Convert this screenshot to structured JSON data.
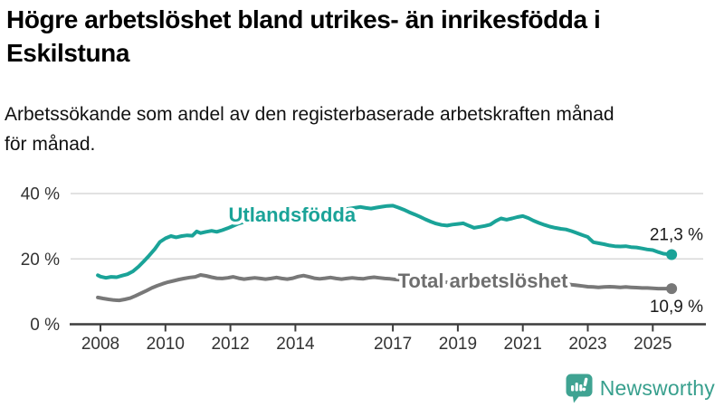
{
  "chart_data": {
    "type": "line",
    "title": "Högre arbetslöshet bland utrikes- än inrikesfödda i Eskilstuna",
    "subtitle": "Arbetssökande som andel av den registerbaserade arbetskraften månad för månad.",
    "xlabel": "",
    "ylabel": "",
    "ylim": [
      0,
      40
    ],
    "grid": "horizontal",
    "legend_position": "inline-labels",
    "x_ticks": [
      2008,
      2010,
      2012,
      2014,
      2017,
      2019,
      2021,
      2023,
      2025
    ],
    "y_ticks": [
      {
        "value": 0,
        "label": "0 %"
      },
      {
        "value": 20,
        "label": "20 %"
      },
      {
        "value": 40,
        "label": "40 %"
      }
    ],
    "series": [
      {
        "name": "Utlandsfödda",
        "color": "#1aa398",
        "end_label": "21,3 %",
        "end_value": 21.3,
        "label_anchor": {
          "year": 2013.9,
          "value": 33.4
        },
        "points": [
          [
            2007.92,
            15.0
          ],
          [
            2008.0,
            14.6
          ],
          [
            2008.17,
            14.2
          ],
          [
            2008.33,
            14.5
          ],
          [
            2008.5,
            14.4
          ],
          [
            2008.67,
            14.9
          ],
          [
            2008.83,
            15.3
          ],
          [
            2009.0,
            16.2
          ],
          [
            2009.17,
            17.6
          ],
          [
            2009.33,
            19.2
          ],
          [
            2009.5,
            21.0
          ],
          [
            2009.67,
            23.0
          ],
          [
            2009.83,
            25.2
          ],
          [
            2010.0,
            26.3
          ],
          [
            2010.17,
            27.0
          ],
          [
            2010.33,
            26.6
          ],
          [
            2010.5,
            27.0
          ],
          [
            2010.67,
            27.2
          ],
          [
            2010.83,
            27.1
          ],
          [
            2010.96,
            28.4
          ],
          [
            2011.08,
            27.9
          ],
          [
            2011.25,
            28.3
          ],
          [
            2011.42,
            28.6
          ],
          [
            2011.58,
            28.3
          ],
          [
            2011.75,
            28.8
          ],
          [
            2011.92,
            29.4
          ],
          [
            2012.08,
            30.1
          ],
          [
            2012.25,
            30.8
          ],
          [
            2012.42,
            31.3
          ],
          [
            2012.58,
            31.1
          ],
          [
            2012.75,
            31.4
          ],
          [
            2013.0,
            31.9
          ],
          [
            2013.33,
            32.4
          ],
          [
            2013.67,
            32.9
          ],
          [
            2014.0,
            33.4
          ],
          [
            2014.33,
            33.8
          ],
          [
            2014.67,
            34.2
          ],
          [
            2015.0,
            34.6
          ],
          [
            2015.33,
            35.0
          ],
          [
            2015.67,
            35.4
          ],
          [
            2016.0,
            35.9
          ],
          [
            2016.17,
            35.6
          ],
          [
            2016.33,
            35.4
          ],
          [
            2016.5,
            35.7
          ],
          [
            2016.67,
            36.0
          ],
          [
            2016.83,
            36.2
          ],
          [
            2017.0,
            36.3
          ],
          [
            2017.17,
            35.7
          ],
          [
            2017.33,
            35.1
          ],
          [
            2017.5,
            34.3
          ],
          [
            2017.67,
            33.6
          ],
          [
            2017.83,
            32.9
          ],
          [
            2018.0,
            32.1
          ],
          [
            2018.17,
            31.4
          ],
          [
            2018.33,
            30.8
          ],
          [
            2018.5,
            30.4
          ],
          [
            2018.67,
            30.2
          ],
          [
            2018.83,
            30.5
          ],
          [
            2019.0,
            30.7
          ],
          [
            2019.17,
            30.9
          ],
          [
            2019.33,
            30.2
          ],
          [
            2019.5,
            29.5
          ],
          [
            2019.67,
            29.8
          ],
          [
            2019.83,
            30.1
          ],
          [
            2020.0,
            30.5
          ],
          [
            2020.17,
            31.6
          ],
          [
            2020.33,
            32.4
          ],
          [
            2020.5,
            32.0
          ],
          [
            2020.67,
            32.4
          ],
          [
            2020.83,
            32.8
          ],
          [
            2021.0,
            33.1
          ],
          [
            2021.17,
            32.5
          ],
          [
            2021.33,
            31.7
          ],
          [
            2021.5,
            31.0
          ],
          [
            2021.67,
            30.4
          ],
          [
            2021.83,
            29.9
          ],
          [
            2022.0,
            29.5
          ],
          [
            2022.17,
            29.2
          ],
          [
            2022.33,
            29.0
          ],
          [
            2022.5,
            28.5
          ],
          [
            2022.67,
            27.9
          ],
          [
            2022.83,
            27.3
          ],
          [
            2023.0,
            26.7
          ],
          [
            2023.08,
            25.9
          ],
          [
            2023.17,
            25.1
          ],
          [
            2023.33,
            24.8
          ],
          [
            2023.5,
            24.5
          ],
          [
            2023.67,
            24.1
          ],
          [
            2023.83,
            23.9
          ],
          [
            2024.0,
            23.8
          ],
          [
            2024.17,
            23.9
          ],
          [
            2024.33,
            23.6
          ],
          [
            2024.5,
            23.5
          ],
          [
            2024.67,
            23.2
          ],
          [
            2024.83,
            22.9
          ],
          [
            2025.0,
            22.7
          ],
          [
            2025.17,
            22.1
          ],
          [
            2025.33,
            21.6
          ],
          [
            2025.5,
            21.4
          ],
          [
            2025.58,
            21.3
          ]
        ]
      },
      {
        "name": "Total arbetslöshet",
        "color": "#787878",
        "label_color": "#6f6f6f",
        "end_label": "10,9 %",
        "end_value": 10.9,
        "label_anchor": {
          "year": 2019.77,
          "value": 13.1
        },
        "points": [
          [
            2007.92,
            8.2
          ],
          [
            2008.08,
            7.9
          ],
          [
            2008.25,
            7.6
          ],
          [
            2008.42,
            7.4
          ],
          [
            2008.58,
            7.3
          ],
          [
            2008.75,
            7.6
          ],
          [
            2008.92,
            8.0
          ],
          [
            2009.08,
            8.7
          ],
          [
            2009.25,
            9.5
          ],
          [
            2009.42,
            10.3
          ],
          [
            2009.58,
            11.1
          ],
          [
            2009.75,
            11.8
          ],
          [
            2009.92,
            12.4
          ],
          [
            2010.08,
            12.9
          ],
          [
            2010.25,
            13.3
          ],
          [
            2010.42,
            13.7
          ],
          [
            2010.58,
            14.0
          ],
          [
            2010.75,
            14.3
          ],
          [
            2010.92,
            14.5
          ],
          [
            2011.08,
            15.1
          ],
          [
            2011.25,
            14.8
          ],
          [
            2011.42,
            14.4
          ],
          [
            2011.58,
            14.1
          ],
          [
            2011.75,
            14.0
          ],
          [
            2011.92,
            14.2
          ],
          [
            2012.08,
            14.5
          ],
          [
            2012.25,
            14.1
          ],
          [
            2012.42,
            13.8
          ],
          [
            2012.58,
            14.0
          ],
          [
            2012.75,
            14.2
          ],
          [
            2012.92,
            14.0
          ],
          [
            2013.08,
            13.8
          ],
          [
            2013.25,
            14.0
          ],
          [
            2013.42,
            14.3
          ],
          [
            2013.58,
            14.0
          ],
          [
            2013.75,
            13.8
          ],
          [
            2013.92,
            14.1
          ],
          [
            2014.08,
            14.6
          ],
          [
            2014.25,
            14.9
          ],
          [
            2014.42,
            14.5
          ],
          [
            2014.58,
            14.1
          ],
          [
            2014.75,
            13.9
          ],
          [
            2014.92,
            14.1
          ],
          [
            2015.08,
            14.3
          ],
          [
            2015.25,
            14.0
          ],
          [
            2015.42,
            13.8
          ],
          [
            2015.58,
            14.0
          ],
          [
            2015.75,
            14.2
          ],
          [
            2015.92,
            14.0
          ],
          [
            2016.08,
            13.9
          ],
          [
            2016.25,
            14.2
          ],
          [
            2016.42,
            14.4
          ],
          [
            2016.58,
            14.2
          ],
          [
            2016.75,
            14.0
          ],
          [
            2016.92,
            13.9
          ],
          [
            2017.08,
            13.7
          ],
          [
            2017.5,
            13.5
          ],
          [
            2018.0,
            13.2
          ],
          [
            2018.5,
            12.9
          ],
          [
            2019.0,
            12.7
          ],
          [
            2019.5,
            12.5
          ],
          [
            2020.0,
            13.0
          ],
          [
            2020.5,
            13.6
          ],
          [
            2021.0,
            13.3
          ],
          [
            2021.5,
            12.9
          ],
          [
            2022.0,
            12.5
          ],
          [
            2022.33,
            12.2
          ],
          [
            2022.5,
            12.1
          ],
          [
            2022.67,
            11.9
          ],
          [
            2022.83,
            11.7
          ],
          [
            2023.0,
            11.5
          ],
          [
            2023.17,
            11.4
          ],
          [
            2023.33,
            11.3
          ],
          [
            2023.5,
            11.4
          ],
          [
            2023.67,
            11.5
          ],
          [
            2023.83,
            11.4
          ],
          [
            2024.0,
            11.3
          ],
          [
            2024.17,
            11.4
          ],
          [
            2024.33,
            11.3
          ],
          [
            2024.5,
            11.2
          ],
          [
            2024.67,
            11.1
          ],
          [
            2024.83,
            11.1
          ],
          [
            2025.0,
            11.0
          ],
          [
            2025.17,
            10.9
          ],
          [
            2025.33,
            10.9
          ],
          [
            2025.5,
            10.9
          ],
          [
            2025.58,
            10.9
          ]
        ]
      }
    ],
    "colors": {
      "grid": "#d8d8d8",
      "axis": "#3d3d3d",
      "tick_text": "#333333",
      "end_label_text": "#1a1a1a"
    }
  },
  "footer": {
    "brand": "Newsworthy",
    "brand_color": "#379f8d",
    "icon": "bar-chart-speech-bubble-icon"
  }
}
